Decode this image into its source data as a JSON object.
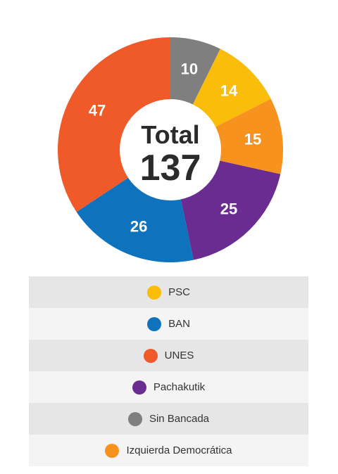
{
  "chart_data": {
    "type": "pie",
    "title": "",
    "center_label": "Total",
    "center_value": "137",
    "slices": [
      {
        "name": "Sin Bancada",
        "value": 10,
        "label": "10",
        "color": "#7f7f7f"
      },
      {
        "name": "PSC",
        "value": 14,
        "label": "14",
        "color": "#f9bd0a"
      },
      {
        "name": "Izquierda Democrática",
        "value": 15,
        "label": "15",
        "color": "#f7921e"
      },
      {
        "name": "Pachakutik",
        "value": 25,
        "label": "25",
        "color": "#6a2c91"
      },
      {
        "name": "BAN",
        "value": 26,
        "label": "26",
        "color": "#0f72bd"
      },
      {
        "name": "UNES",
        "value": 47,
        "label": "47",
        "color": "#f05a28"
      }
    ],
    "legend": [
      {
        "label": "PSC",
        "color": "#f9bd0a"
      },
      {
        "label": "BAN",
        "color": "#0f72bd"
      },
      {
        "label": "UNES",
        "color": "#f05a28"
      },
      {
        "label": "Pachakutik",
        "color": "#6a2c91"
      },
      {
        "label": "Sin Bancada",
        "color": "#7f7f7f"
      },
      {
        "label": "Izquierda Democrática",
        "color": "#f7921e"
      }
    ]
  }
}
